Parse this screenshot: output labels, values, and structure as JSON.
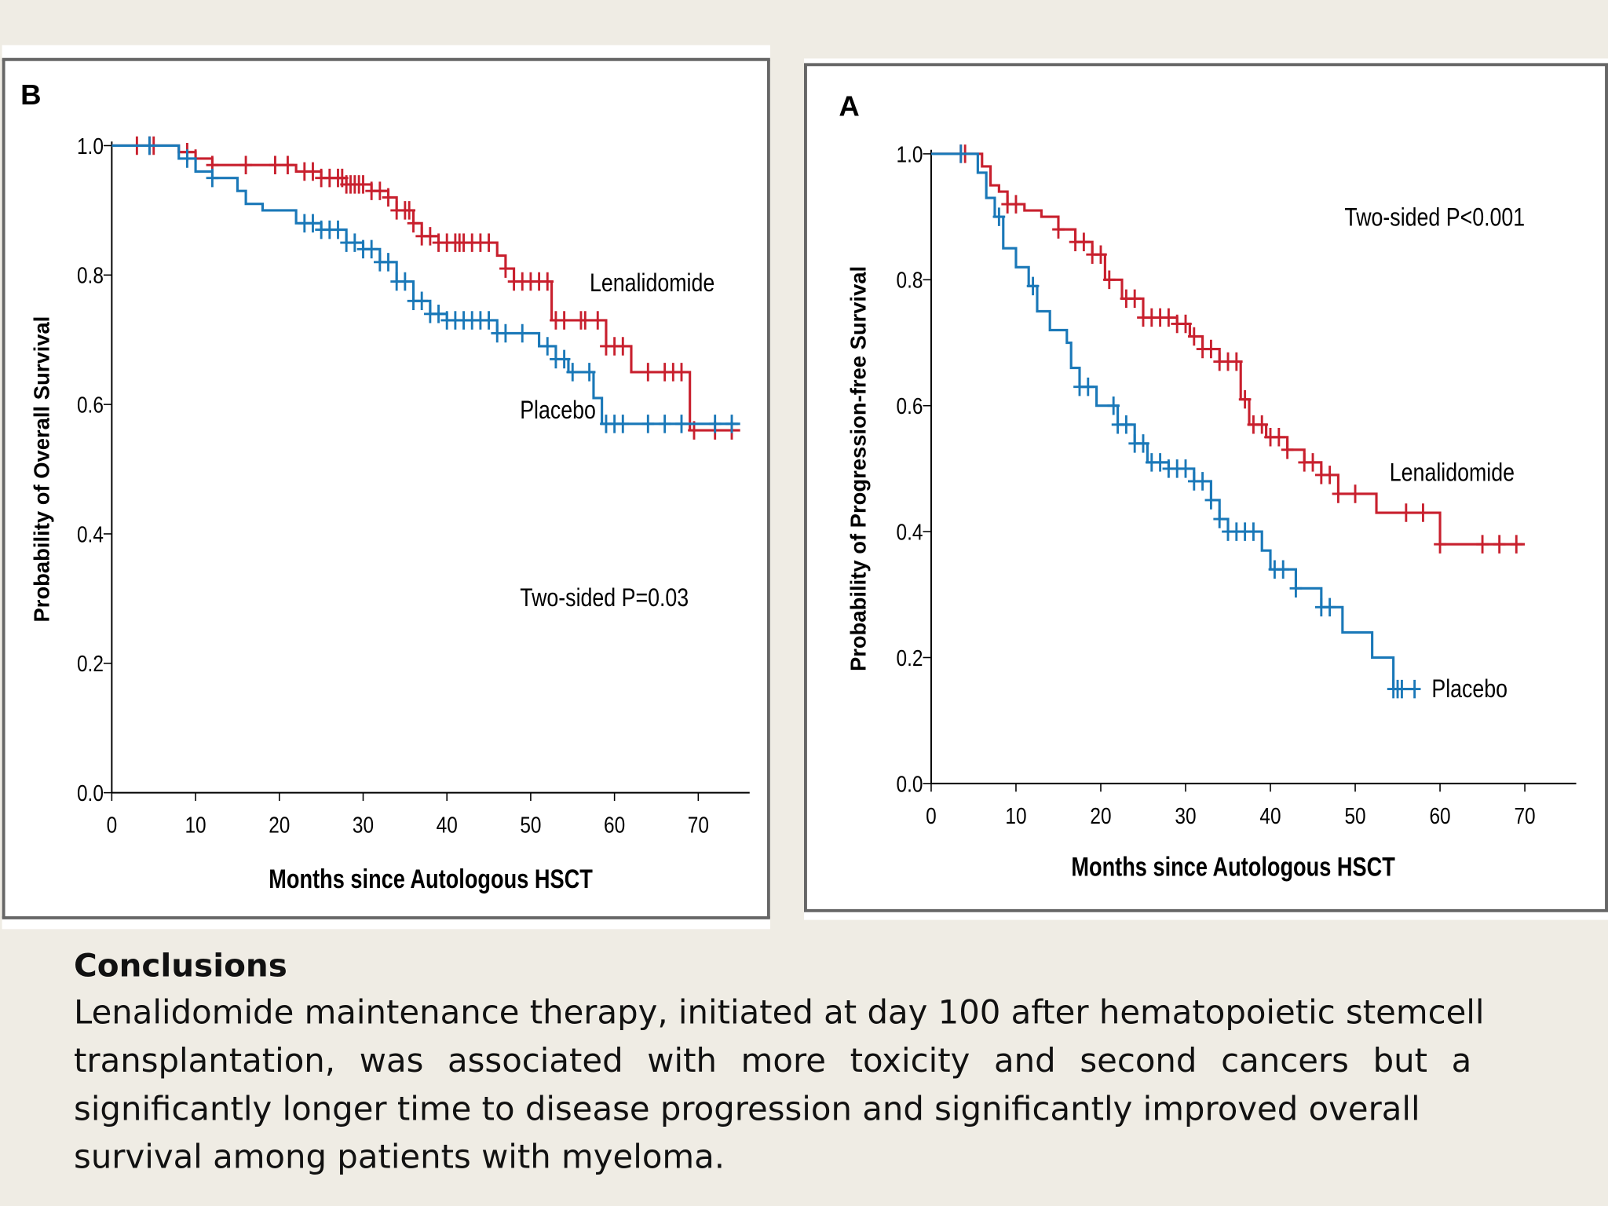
{
  "colors": {
    "lenalidomide": "#c8202e",
    "placebo": "#1a78b8",
    "background": "#efece4",
    "frame": "#666666"
  },
  "chart_data": [
    {
      "type": "line",
      "panel_label": "B",
      "title": "",
      "xlabel": "Months since Autologous HSCT",
      "ylabel": "Probability of Overall Survival",
      "xlim": [
        0,
        75
      ],
      "ylim": [
        0,
        1.0
      ],
      "xticks": [
        "0",
        "10",
        "20",
        "30",
        "40",
        "50",
        "60",
        "70"
      ],
      "yticks": [
        "0.0",
        "0.2",
        "0.4",
        "0.6",
        "0.8",
        "1.0"
      ],
      "annotation": "Two-sided P=0.03",
      "grid": false,
      "series": [
        {
          "name": "Lenalidomide",
          "color": "#c8202e",
          "steps": [
            [
              0,
              1.0
            ],
            [
              8,
              0.99
            ],
            [
              10,
              0.98
            ],
            [
              12,
              0.97
            ],
            [
              22,
              0.96
            ],
            [
              25,
              0.95
            ],
            [
              28,
              0.94
            ],
            [
              31,
              0.93
            ],
            [
              33,
              0.92
            ],
            [
              34,
              0.9
            ],
            [
              36,
              0.88
            ],
            [
              37,
              0.86
            ],
            [
              39,
              0.85
            ],
            [
              46,
              0.83
            ],
            [
              47,
              0.81
            ],
            [
              48,
              0.79
            ],
            [
              52.5,
              0.73
            ],
            [
              59,
              0.69
            ],
            [
              62,
              0.65
            ],
            [
              69,
              0.56
            ],
            [
              75,
              0.56
            ]
          ],
          "censored": [
            3,
            4.5,
            5,
            9,
            10,
            12,
            16,
            19.5,
            21,
            23,
            24,
            25,
            26,
            27,
            27.5,
            28,
            28.5,
            29,
            29.5,
            30,
            31,
            32,
            33,
            34,
            35,
            35.5,
            36,
            37,
            38,
            39,
            40,
            41,
            41.5,
            42,
            43,
            44,
            45,
            47,
            48,
            49,
            50,
            51,
            52,
            53,
            54,
            56,
            56.5,
            58,
            59,
            60,
            61,
            64,
            66,
            67,
            68,
            69.5,
            72,
            74
          ]
        },
        {
          "name": "Placebo",
          "color": "#1a78b8",
          "steps": [
            [
              0,
              1.0
            ],
            [
              8,
              0.98
            ],
            [
              10,
              0.96
            ],
            [
              12,
              0.95
            ],
            [
              15,
              0.93
            ],
            [
              16,
              0.91
            ],
            [
              18,
              0.9
            ],
            [
              22,
              0.88
            ],
            [
              25,
              0.87
            ],
            [
              28,
              0.85
            ],
            [
              30,
              0.84
            ],
            [
              32,
              0.82
            ],
            [
              34,
              0.79
            ],
            [
              36,
              0.76
            ],
            [
              38,
              0.74
            ],
            [
              40,
              0.73
            ],
            [
              46,
              0.71
            ],
            [
              51,
              0.69
            ],
            [
              53,
              0.67
            ],
            [
              54.5,
              0.65
            ],
            [
              57.5,
              0.61
            ],
            [
              58.5,
              0.57
            ],
            [
              75,
              0.57
            ]
          ],
          "censored": [
            4.5,
            9,
            12,
            23,
            24,
            25,
            26,
            27,
            28,
            29,
            30,
            31,
            32,
            33,
            34,
            35,
            36,
            37,
            38,
            39,
            40,
            41,
            42,
            43,
            44,
            45,
            46,
            47,
            49,
            52,
            53,
            54,
            55,
            57,
            59,
            60,
            61,
            64,
            66,
            68,
            72,
            74
          ]
        }
      ]
    },
    {
      "type": "line",
      "panel_label": "A",
      "title": "",
      "xlabel": "Months since Autologous HSCT",
      "ylabel": "Probability of Progression-free Survival",
      "xlim": [
        0,
        76
      ],
      "ylim": [
        0,
        1.0
      ],
      "xticks": [
        "0",
        "10",
        "20",
        "30",
        "40",
        "50",
        "60",
        "70"
      ],
      "yticks": [
        "0.0",
        "0.2",
        "0.4",
        "0.6",
        "0.8",
        "1.0"
      ],
      "annotation": "Two-sided P<0.001",
      "grid": false,
      "series": [
        {
          "name": "Lenalidomide",
          "color": "#c8202e",
          "steps": [
            [
              0,
              1.0
            ],
            [
              6,
              0.98
            ],
            [
              7,
              0.95
            ],
            [
              8,
              0.94
            ],
            [
              9,
              0.92
            ],
            [
              11,
              0.91
            ],
            [
              13,
              0.9
            ],
            [
              15,
              0.88
            ],
            [
              17,
              0.86
            ],
            [
              19,
              0.84
            ],
            [
              20.5,
              0.8
            ],
            [
              22.5,
              0.77
            ],
            [
              25,
              0.74
            ],
            [
              29,
              0.73
            ],
            [
              30.5,
              0.71
            ],
            [
              32,
              0.69
            ],
            [
              34,
              0.67
            ],
            [
              36.5,
              0.61
            ],
            [
              37.5,
              0.57
            ],
            [
              39.5,
              0.55
            ],
            [
              42,
              0.53
            ],
            [
              44,
              0.51
            ],
            [
              46,
              0.49
            ],
            [
              48,
              0.46
            ],
            [
              52.5,
              0.43
            ],
            [
              60,
              0.38
            ],
            [
              70,
              0.38
            ]
          ],
          "censored": [
            3.5,
            4,
            9,
            10,
            15,
            17,
            18,
            19,
            20,
            21,
            23,
            24,
            25,
            26,
            27,
            28,
            29,
            30,
            31,
            32,
            33,
            34,
            35,
            36,
            37,
            38,
            39,
            40,
            41,
            42,
            44,
            45,
            46,
            47,
            48,
            50,
            56,
            58,
            60,
            65,
            67,
            69
          ]
        },
        {
          "name": "Placebo",
          "color": "#1a78b8",
          "steps": [
            [
              0,
              1.0
            ],
            [
              5.5,
              0.97
            ],
            [
              6.5,
              0.93
            ],
            [
              7.5,
              0.9
            ],
            [
              8.5,
              0.85
            ],
            [
              10,
              0.82
            ],
            [
              11.5,
              0.79
            ],
            [
              12.5,
              0.75
            ],
            [
              14,
              0.72
            ],
            [
              16,
              0.7
            ],
            [
              16.5,
              0.66
            ],
            [
              17.5,
              0.63
            ],
            [
              19.5,
              0.6
            ],
            [
              22,
              0.57
            ],
            [
              24,
              0.54
            ],
            [
              25.5,
              0.51
            ],
            [
              28,
              0.5
            ],
            [
              31,
              0.48
            ],
            [
              33,
              0.45
            ],
            [
              34,
              0.42
            ],
            [
              35,
              0.4
            ],
            [
              39,
              0.37
            ],
            [
              40,
              0.34
            ],
            [
              43,
              0.31
            ],
            [
              46,
              0.28
            ],
            [
              48.5,
              0.24
            ],
            [
              52,
              0.2
            ],
            [
              54.5,
              0.15
            ],
            [
              57,
              0.15
            ]
          ],
          "censored": [
            3.5,
            8,
            12,
            17.5,
            18.5,
            21.5,
            22,
            23,
            24,
            25,
            26,
            27,
            28,
            29,
            30,
            31,
            32,
            33,
            34,
            35,
            36,
            37,
            38,
            40.5,
            41.5,
            43,
            46,
            47,
            54.5,
            55,
            55.5,
            57
          ]
        }
      ]
    }
  ],
  "conclusions": {
    "title": "Conclusions",
    "lines": [
      "Lenalidomide maintenance therapy, initiated at day 100 after hematopoietic stemcell",
      "transplantation, was associated with more toxicity and second cancers but a",
      "significantly longer time to disease progression and significantly improved overall",
      "survival among patients with myeloma."
    ]
  }
}
